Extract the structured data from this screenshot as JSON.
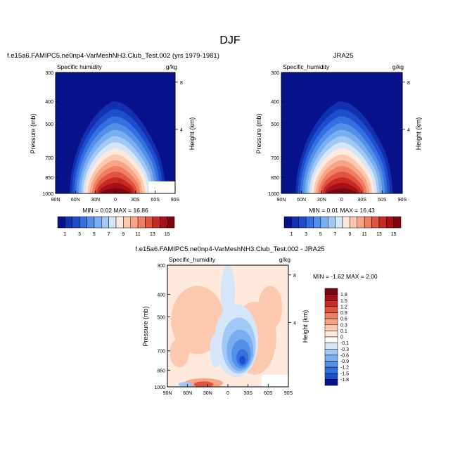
{
  "page": {
    "title": "DJF"
  },
  "chart_data": [
    {
      "type": "heatmap",
      "panel": "model",
      "title": "f.e15a6.FAMIPC5.ne0np4-VarMeshNH3.Club_Test.002 (yrs 1979-1981)",
      "left_label": "Specific humidity",
      "units": "g/kg",
      "ylabel": "Pressure (mb)",
      "ylabel_right": "Height (km)",
      "yticks": [
        "300",
        "400",
        "500",
        "700",
        "850",
        "1000"
      ],
      "right_ticks": [
        "8",
        "4"
      ],
      "xticks": [
        "90N",
        "60N",
        "30N",
        "0",
        "30S",
        "60S",
        "90S"
      ],
      "min_max": "MIN =  0.02  MAX =  16.86",
      "min": 0.02,
      "max": 16.86,
      "colorbar_labels": [
        "1",
        "3",
        "5",
        "7",
        "9",
        "11",
        "13",
        "15"
      ]
    },
    {
      "type": "heatmap",
      "panel": "obs",
      "title": "JRA25",
      "left_label": "Specific_humidity",
      "units": "g/kg",
      "ylabel": "Pressure (mb)",
      "ylabel_right": "Height (km)",
      "yticks": [
        "300",
        "400",
        "500",
        "700",
        "850",
        "1000"
      ],
      "right_ticks": [
        "8",
        "4"
      ],
      "xticks": [
        "90N",
        "60N",
        "30N",
        "0",
        "30S",
        "60S",
        "90S"
      ],
      "min_max": "MIN =  0.01  MAX =  16.43",
      "min": 0.01,
      "max": 16.43,
      "colorbar_labels": [
        "1",
        "3",
        "5",
        "7",
        "9",
        "11",
        "13",
        "15"
      ]
    },
    {
      "type": "heatmap",
      "panel": "difference",
      "title": "f.e15a6.FAMIPC5.ne0np4-VarMeshNH3.Club_Test.002 - JRA25",
      "left_label": "Specific_humidity",
      "units": "g/kg",
      "ylabel": "Pressure (mb)",
      "ylabel_right": "Height (km)",
      "yticks": [
        "300",
        "400",
        "500",
        "700",
        "850",
        "1000"
      ],
      "right_ticks": [
        "8",
        "4"
      ],
      "xticks": [
        "90N",
        "60N",
        "30N",
        "0",
        "30S",
        "60S",
        "90S"
      ],
      "min_max": "MIN = -1.62  MAX =  2.00",
      "min": -1.62,
      "max": 2.0,
      "colorbar_labels": [
        "1.8",
        "1.5",
        "1.2",
        "0.9",
        "0.6",
        "0.3",
        "0.1",
        "0",
        "-0.1",
        "-0.3",
        "-0.6",
        "-0.9",
        "-1.2",
        "-1.5",
        "-1.8"
      ]
    }
  ],
  "colors": {
    "seq_palette": [
      "#08128a",
      "#1230b0",
      "#1d4ed0",
      "#3570e0",
      "#5590e8",
      "#7aaef0",
      "#a2c8f5",
      "#d5e6f8",
      "#ffe9dc",
      "#fcc8ae",
      "#f8a487",
      "#f07e62",
      "#e05440",
      "#c72a24",
      "#a80f17",
      "#7d0510"
    ],
    "diff_palette": [
      "#7d0510",
      "#a80f17",
      "#c72a24",
      "#e05440",
      "#f07e62",
      "#f8a487",
      "#fcc8ae",
      "#ffe9dc",
      "#ffffff",
      "#d5e6f8",
      "#a2c8f5",
      "#7aaef0",
      "#5590e8",
      "#3570e0",
      "#1d4ed0",
      "#08128a"
    ]
  }
}
